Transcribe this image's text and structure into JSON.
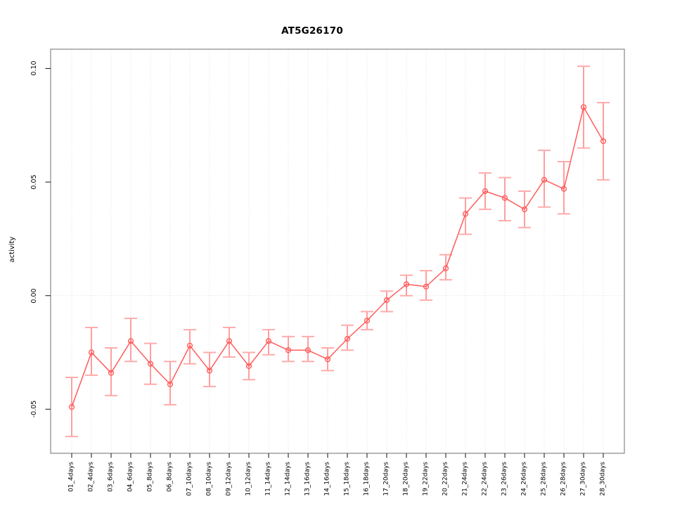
{
  "chart_data": {
    "type": "line",
    "title": "AT5G26170",
    "xlabel": "",
    "ylabel": "activity",
    "legend": "none",
    "grid": {
      "vertical": "one-dotted-line-per-category",
      "horizontal_at_values": [
        0
      ],
      "style": "dotted"
    },
    "categories": [
      "01_4days",
      "02_4days",
      "03_6days",
      "04_6days",
      "05_8days",
      "06_8days",
      "07_10days",
      "08_10days",
      "09_12days",
      "10_12days",
      "11_14days",
      "12_14days",
      "13_16days",
      "14_16days",
      "15_18days",
      "16_18days",
      "17_20days",
      "18_20days",
      "19_22days",
      "20_22days",
      "21_24days",
      "22_24days",
      "23_26days",
      "24_26days",
      "25_28days",
      "26_28days",
      "27_30days",
      "28_30days"
    ],
    "series": [
      {
        "name": "activity",
        "marker": "open-circle",
        "values": [
          -0.049,
          -0.025,
          -0.034,
          -0.02,
          -0.03,
          -0.039,
          -0.022,
          -0.033,
          -0.02,
          -0.031,
          -0.02,
          -0.024,
          -0.024,
          -0.028,
          -0.019,
          -0.011,
          -0.002,
          0.005,
          0.004,
          0.012,
          0.036,
          0.046,
          0.043,
          0.038,
          0.051,
          0.047,
          0.083,
          0.068
        ],
        "error_low": [
          -0.062,
          -0.035,
          -0.044,
          -0.029,
          -0.039,
          -0.048,
          -0.03,
          -0.04,
          -0.027,
          -0.037,
          -0.026,
          -0.029,
          -0.029,
          -0.033,
          -0.024,
          -0.015,
          -0.007,
          0.0,
          -0.002,
          0.007,
          0.027,
          0.038,
          0.033,
          0.03,
          0.039,
          0.036,
          0.065,
          0.051
        ],
        "error_high": [
          -0.036,
          -0.014,
          -0.023,
          -0.01,
          -0.021,
          -0.029,
          -0.015,
          -0.025,
          -0.014,
          -0.025,
          -0.015,
          -0.018,
          -0.018,
          -0.023,
          -0.013,
          -0.007,
          0.002,
          0.009,
          0.011,
          0.018,
          0.043,
          0.054,
          0.052,
          0.046,
          0.064,
          0.059,
          0.101,
          0.085
        ]
      }
    ],
    "ylim": [
      -0.0694,
      0.1085
    ],
    "yticks": [
      -0.05,
      0.0,
      0.05,
      0.1
    ],
    "ytick_labels": [
      "-0.05",
      "0.00",
      "0.05",
      "0.10"
    ],
    "colors": {
      "point": "#ff5c5c",
      "line": "#ff5c5c",
      "error_bar": "#ff8585",
      "error_cap": "#ffabab",
      "gridline": "#dedede",
      "box": "#878787",
      "tick": "#262626",
      "text": "#000000"
    }
  }
}
